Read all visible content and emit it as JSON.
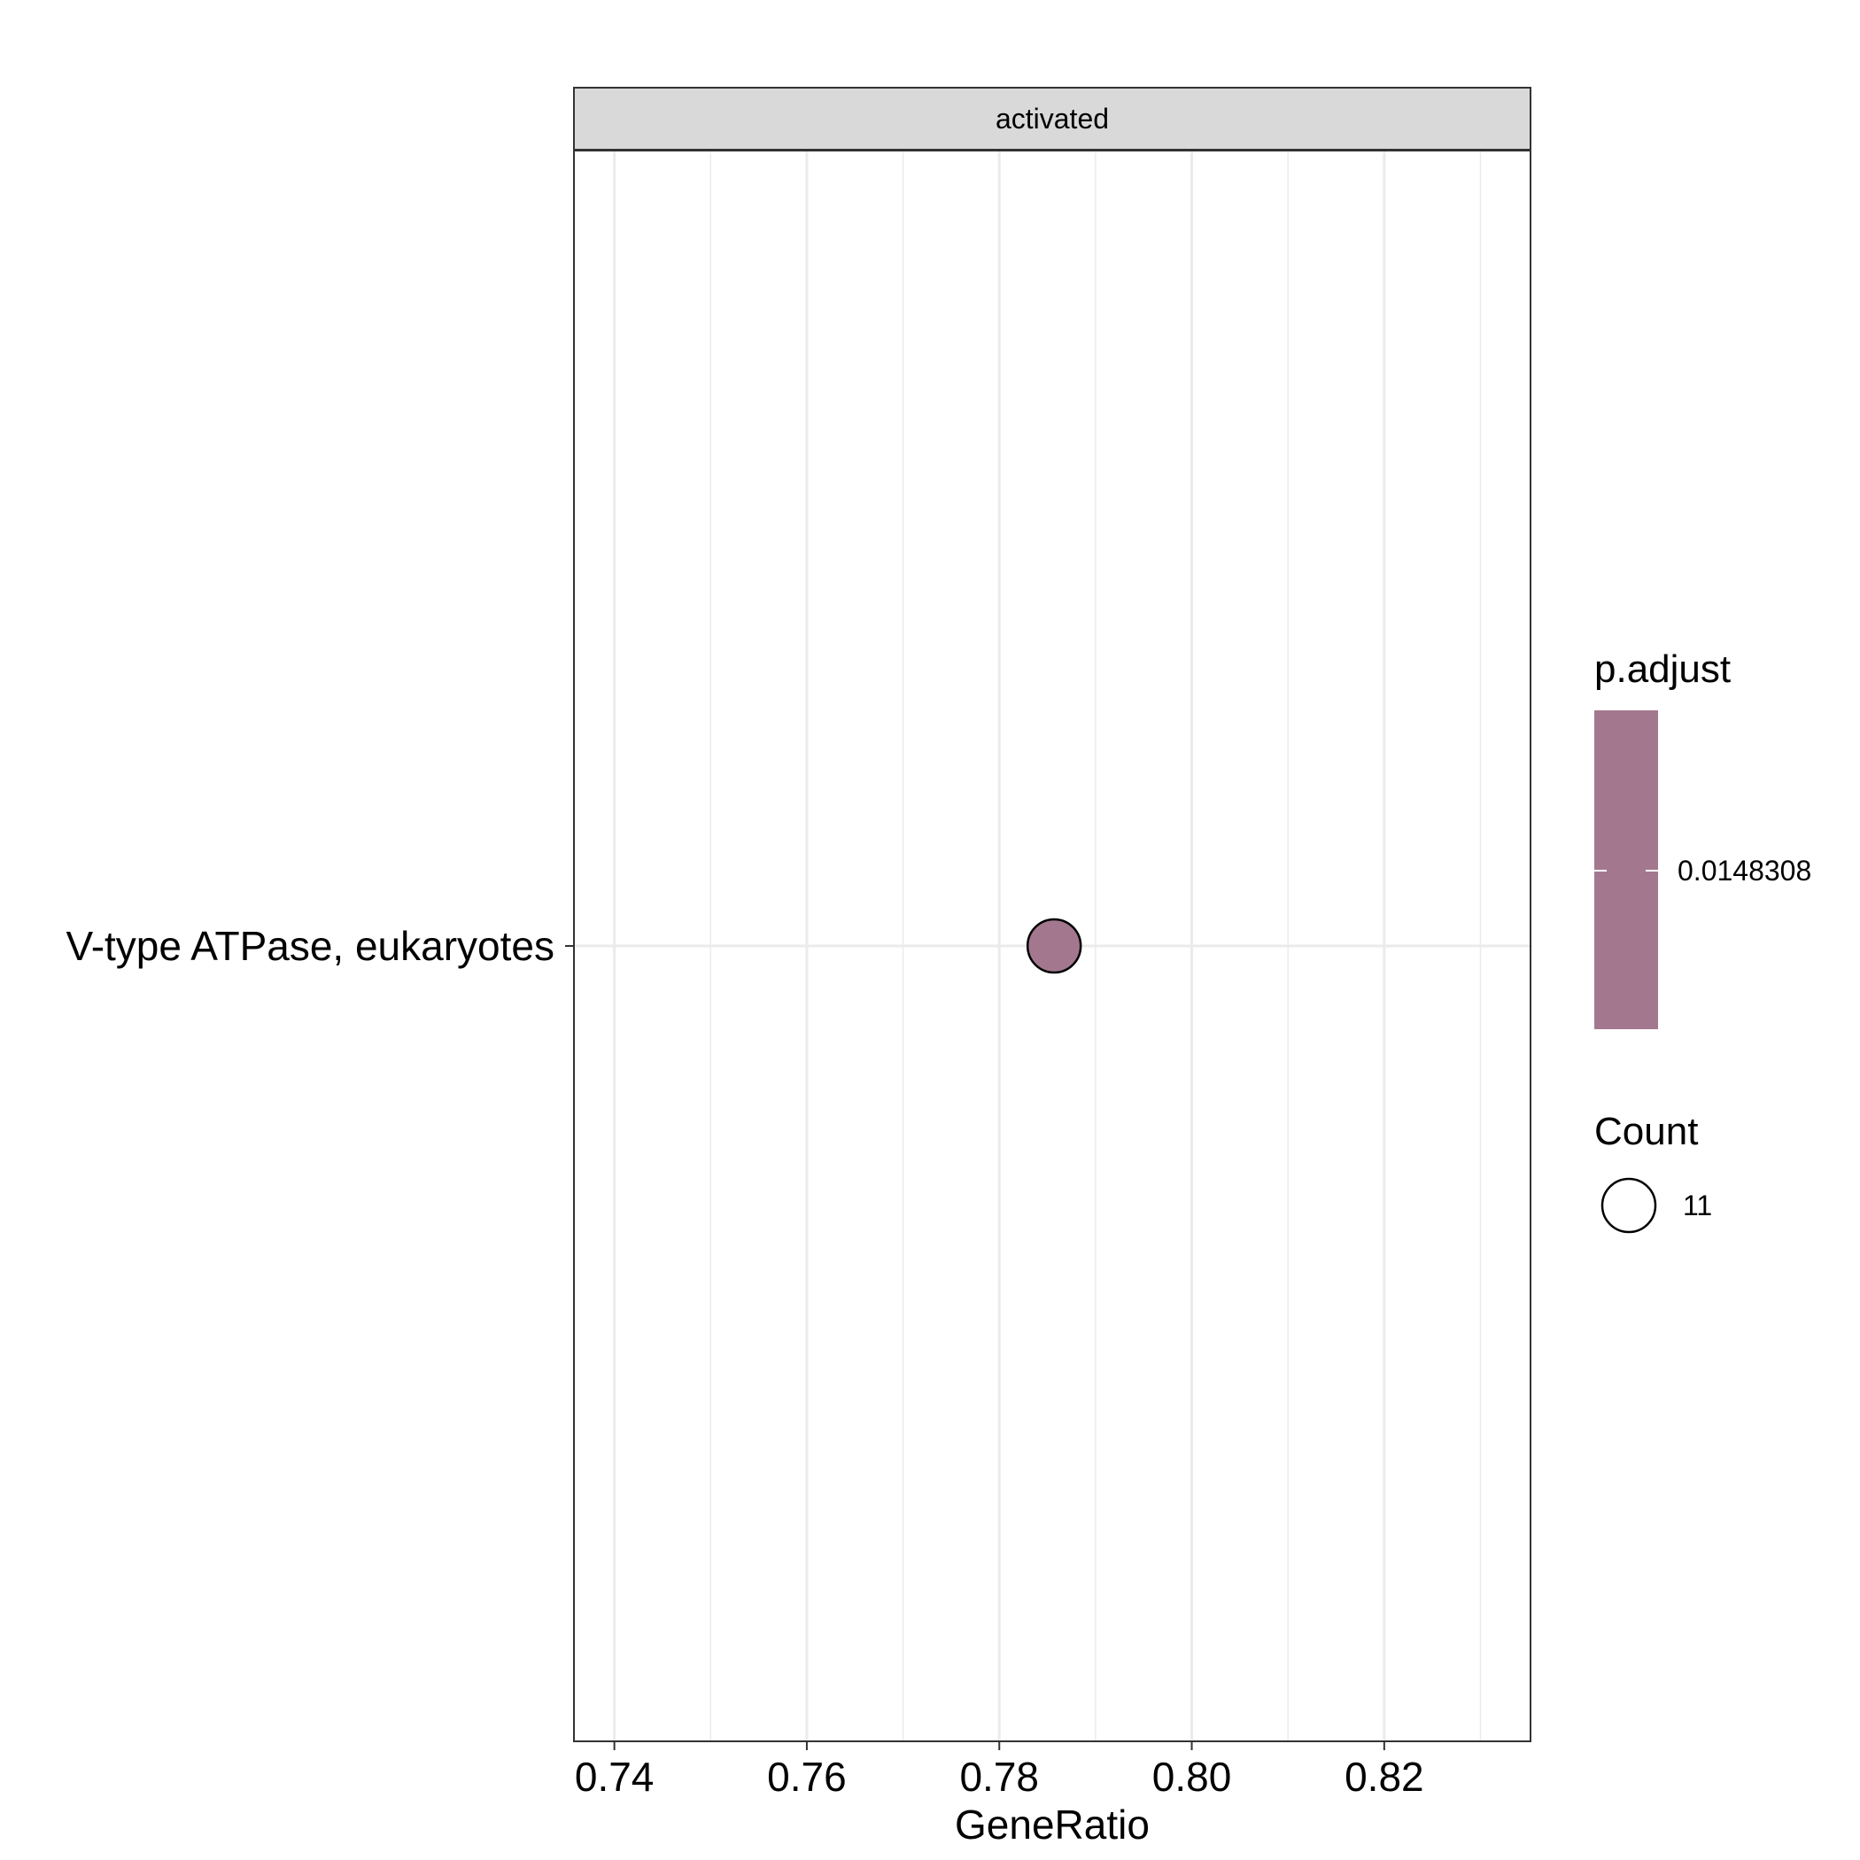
{
  "chart_data": {
    "type": "scatter",
    "facet": "activated",
    "xlabel": "GeneRatio",
    "ylabel": "",
    "xlim": [
      0.7358,
      0.8352
    ],
    "x_ticks": [
      {
        "value": 0.74,
        "label": "0.74"
      },
      {
        "value": 0.76,
        "label": "0.76"
      },
      {
        "value": 0.78,
        "label": "0.78"
      },
      {
        "value": 0.8,
        "label": "0.80"
      },
      {
        "value": 0.82,
        "label": "0.82"
      }
    ],
    "x_minor_ticks": [
      0.75,
      0.77,
      0.79,
      0.81,
      0.83
    ],
    "categories": [
      "V-type ATPase, eukaryotes"
    ],
    "points": [
      {
        "category": "V-type ATPase, eukaryotes",
        "x": 0.7857,
        "count": 11,
        "p_adjust": 0.0148308
      }
    ],
    "grid": true,
    "legend_position": "right",
    "legend": {
      "color": {
        "title": "p.adjust",
        "labels": [
          "0.0148308"
        ],
        "value": 0.0148308
      },
      "size": {
        "title": "Count",
        "labels": [
          "11"
        ],
        "value": 11
      }
    },
    "colors": {
      "point_fill": "#a3788f",
      "strip_fill": "#d9d9d9",
      "grid": "#ebebeb",
      "border": "#333333"
    }
  }
}
